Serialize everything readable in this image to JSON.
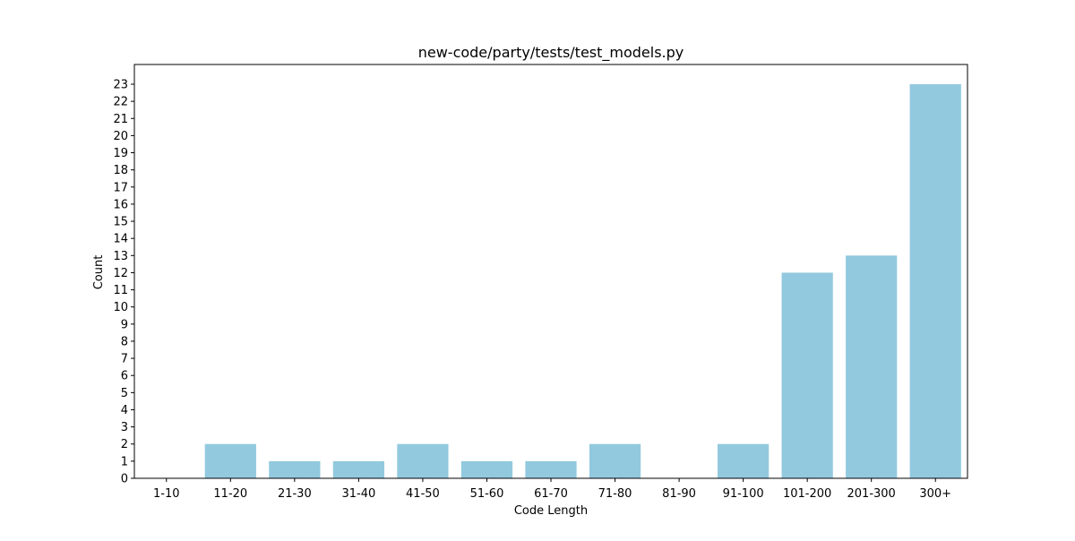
{
  "chart_data": {
    "type": "bar",
    "title": "new-code/party/tests/test_models.py",
    "xlabel": "Code Length",
    "ylabel": "Count",
    "categories": [
      "1-10",
      "11-20",
      "21-30",
      "31-40",
      "41-50",
      "51-60",
      "61-70",
      "71-80",
      "81-90",
      "91-100",
      "101-200",
      "201-300",
      "300+"
    ],
    "values": [
      0,
      2,
      1,
      1,
      2,
      1,
      1,
      2,
      0,
      2,
      12,
      13,
      23
    ],
    "ylim": [
      0,
      24.15
    ],
    "yticks": [
      0,
      1,
      2,
      3,
      4,
      5,
      6,
      7,
      8,
      9,
      10,
      11,
      12,
      13,
      14,
      15,
      16,
      17,
      18,
      19,
      20,
      21,
      22,
      23
    ],
    "bar_color": "#92c9df",
    "grid": false,
    "legend": "none"
  }
}
